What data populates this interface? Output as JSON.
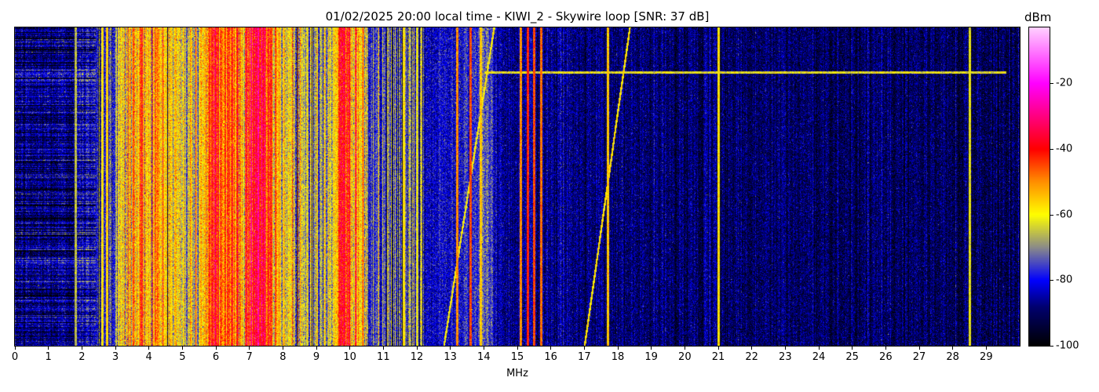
{
  "chart_data": {
    "type": "heatmap",
    "title": "01/02/2025 20:00 local time - KIWI_2 - Skywire loop [SNR: 37 dB]",
    "xlabel": "MHz",
    "xlim": [
      0,
      30
    ],
    "x_ticks": [
      "0",
      "1",
      "2",
      "3",
      "4",
      "5",
      "6",
      "7",
      "8",
      "9",
      "10",
      "11",
      "12",
      "13",
      "14",
      "15",
      "16",
      "17",
      "18",
      "19",
      "20",
      "21",
      "22",
      "23",
      "24",
      "25",
      "26",
      "27",
      "28",
      "29"
    ],
    "colorbar": {
      "label": "dBm",
      "range": [
        -100,
        -3
      ],
      "ticks": [
        "-20",
        "-40",
        "-60",
        "-80",
        "-100"
      ],
      "tick_values": [
        -20,
        -40,
        -60,
        -80,
        -100
      ],
      "colormap": [
        {
          "value": -100,
          "color": "#000000"
        },
        {
          "value": -88,
          "color": "#000070"
        },
        {
          "value": -80,
          "color": "#0000ff"
        },
        {
          "value": -70,
          "color": "#8a8a8a"
        },
        {
          "value": -60,
          "color": "#ffff00"
        },
        {
          "value": -50,
          "color": "#ff9000"
        },
        {
          "value": -40,
          "color": "#ff0000"
        },
        {
          "value": -20,
          "color": "#ff00ff"
        },
        {
          "value": -3,
          "color": "#ffd0ff"
        }
      ]
    },
    "mean_level_profile": {
      "mhz": [
        0,
        1.8,
        2.0,
        2.4,
        2.8,
        3.2,
        3.4,
        4.0,
        4.5,
        5.0,
        5.5,
        5.8,
        6.4,
        6.8,
        7.1,
        7.4,
        7.6,
        8.0,
        8.6,
        9.0,
        9.4,
        9.6,
        10.2,
        10.5,
        11.0,
        12.0,
        12.5,
        13.0,
        14.2,
        14.4,
        16.0,
        17.0,
        30.0
      ],
      "dbm": [
        -89,
        -88,
        -84,
        -80,
        -74,
        -64,
        -55,
        -52,
        -56,
        -64,
        -60,
        -47,
        -45,
        -52,
        -32,
        -35,
        -52,
        -58,
        -62,
        -70,
        -68,
        -46,
        -47,
        -74,
        -76,
        -80,
        -83,
        -80,
        -74,
        -86,
        -86,
        -89,
        -91
      ]
    },
    "carriers": [
      {
        "mhz": 1.8,
        "dbm": -66
      },
      {
        "mhz": 2.6,
        "dbm": -58
      },
      {
        "mhz": 2.75,
        "dbm": -56
      },
      {
        "mhz": 11.6,
        "dbm": -58
      },
      {
        "mhz": 12.0,
        "dbm": -62
      },
      {
        "mhz": 13.2,
        "dbm": -50
      },
      {
        "mhz": 13.6,
        "dbm": -45
      },
      {
        "mhz": 13.9,
        "dbm": -55
      },
      {
        "mhz": 15.1,
        "dbm": -50
      },
      {
        "mhz": 15.3,
        "dbm": -42
      },
      {
        "mhz": 15.5,
        "dbm": -45
      },
      {
        "mhz": 15.7,
        "dbm": -48
      },
      {
        "mhz": 17.7,
        "dbm": -55
      },
      {
        "mhz": 21.0,
        "dbm": -58
      },
      {
        "mhz": 28.5,
        "dbm": -62
      }
    ],
    "sweeps": [
      {
        "start_mhz": 12.8,
        "end_mhz": 14.3,
        "dbm": -60
      },
      {
        "start_mhz": 17.0,
        "end_mhz": 18.35,
        "dbm": -58
      }
    ],
    "burst": {
      "from_mhz": 14.0,
      "to_mhz": 29.6,
      "dbm": -62
    }
  }
}
